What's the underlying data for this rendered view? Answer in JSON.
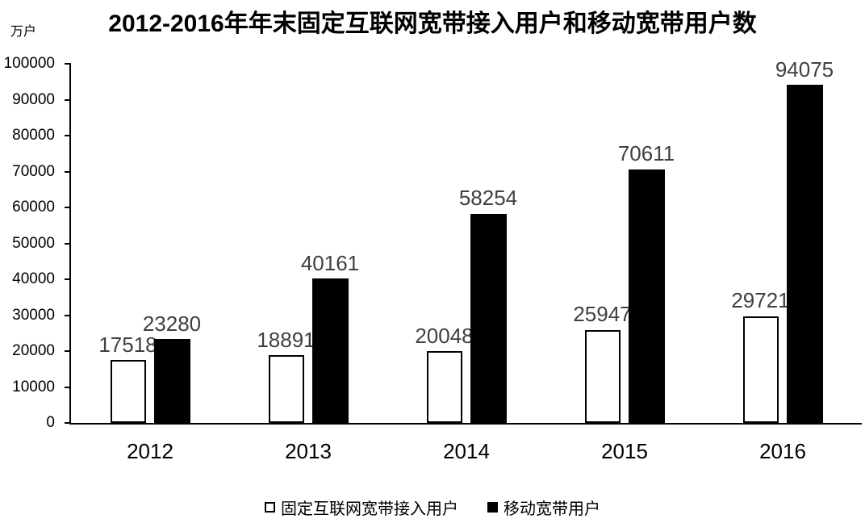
{
  "chart_data": {
    "type": "bar",
    "title": "2012-2016年年末固定互联网宽带接入用户和移动宽带用户数",
    "unit_label": "万户",
    "categories": [
      "2012",
      "2013",
      "2014",
      "2015",
      "2016"
    ],
    "series": [
      {
        "name": "固定互联网宽带接入用户",
        "fill": "#ffffff",
        "border": "#000000",
        "values": [
          17518,
          18891,
          20048,
          25947,
          29721
        ]
      },
      {
        "name": "移动宽带用户",
        "fill": "#000000",
        "border": "#000000",
        "values": [
          23280,
          40161,
          58254,
          70611,
          94075
        ]
      }
    ],
    "ylim": [
      0,
      100000
    ],
    "yticks": [
      0,
      10000,
      20000,
      30000,
      40000,
      50000,
      60000,
      70000,
      80000,
      90000,
      100000
    ],
    "grid": false,
    "legend_position": "bottom",
    "data_label_color": "#404040",
    "axis_color": "#000000"
  }
}
